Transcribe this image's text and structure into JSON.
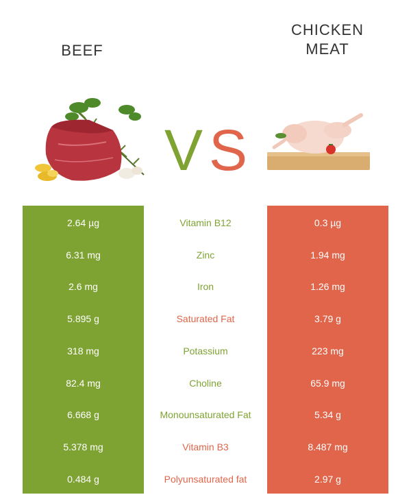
{
  "header": {
    "left_title": "BEEF",
    "right_title_line1": "CHICKEN",
    "right_title_line2": "MEAT",
    "vs_v": "V",
    "vs_s": "S"
  },
  "colors": {
    "green": "#7ea332",
    "red": "#e0654a"
  },
  "comparison": {
    "rows": [
      {
        "nutrient": "Vitamin B12",
        "beef": "2.64 µg",
        "chicken": "0.3 µg",
        "winner": "green"
      },
      {
        "nutrient": "Zinc",
        "beef": "6.31 mg",
        "chicken": "1.94 mg",
        "winner": "green"
      },
      {
        "nutrient": "Iron",
        "beef": "2.6 mg",
        "chicken": "1.26 mg",
        "winner": "green"
      },
      {
        "nutrient": "Saturated Fat",
        "beef": "5.895 g",
        "chicken": "3.79 g",
        "winner": "red"
      },
      {
        "nutrient": "Potassium",
        "beef": "318 mg",
        "chicken": "223 mg",
        "winner": "green"
      },
      {
        "nutrient": "Choline",
        "beef": "82.4 mg",
        "chicken": "65.9 mg",
        "winner": "green"
      },
      {
        "nutrient": "Monounsaturated Fat",
        "beef": "6.668 g",
        "chicken": "5.34 g",
        "winner": "green"
      },
      {
        "nutrient": "Vitamin B3",
        "beef": "5.378 mg",
        "chicken": "8.487 mg",
        "winner": "red"
      },
      {
        "nutrient": "Polyunsaturated fat",
        "beef": "0.484 g",
        "chicken": "2.97 g",
        "winner": "red"
      }
    ]
  }
}
